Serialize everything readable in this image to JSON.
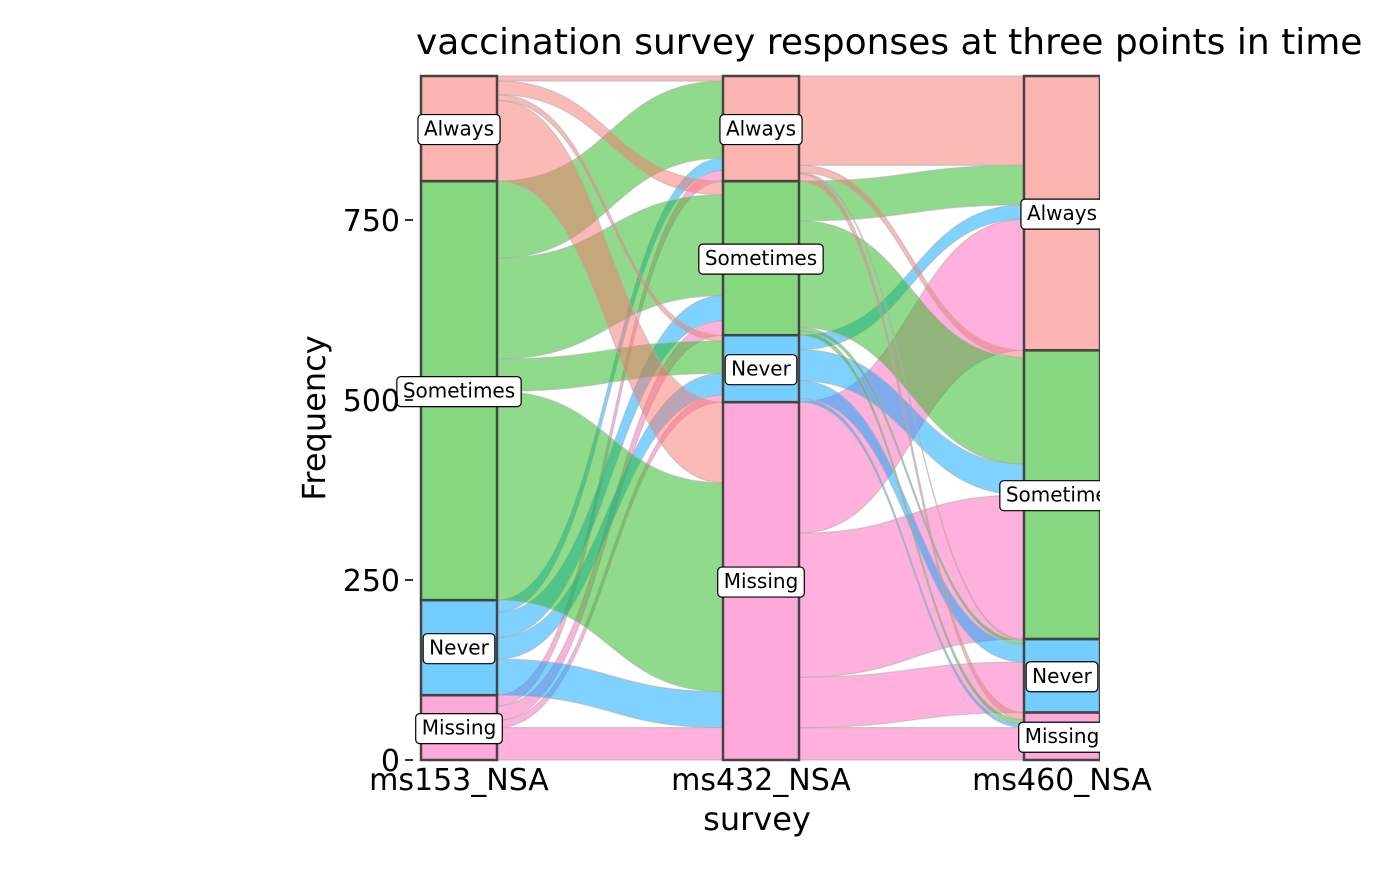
{
  "chart_data": {
    "type": "alluvial",
    "title": "vaccination survey responses at three points in time",
    "xlabel": "survey",
    "ylabel": "Frequency",
    "ylim": [
      0,
      950
    ],
    "y_ticks": [
      0,
      250,
      500,
      750
    ],
    "grid": false,
    "legend": "none",
    "axes": [
      "ms153_NSA",
      "ms432_NSA",
      "ms460_NSA"
    ],
    "categories": [
      "Missing",
      "Never",
      "Sometimes",
      "Always"
    ],
    "colors": {
      "Always": "#F8766D",
      "Sometimes": "#21B818",
      "Never": "#00A6FF",
      "Missing": "#FF62BC"
    },
    "strata": [
      {
        "axis": "ms153_NSA",
        "values": {
          "Missing": 90,
          "Never": 132,
          "Sometimes": 582,
          "Always": 146
        }
      },
      {
        "axis": "ms432_NSA",
        "values": {
          "Missing": 497,
          "Never": 93,
          "Sometimes": 214,
          "Always": 146
        }
      },
      {
        "axis": "ms460_NSA",
        "values": {
          "Missing": 66,
          "Never": 102,
          "Sometimes": 401,
          "Always": 381
        }
      }
    ],
    "flows": [
      {
        "from": "Missing",
        "to": "Missing",
        "stage": 1,
        "value": 45
      },
      {
        "from": "Missing",
        "to": "Never",
        "stage": 1,
        "value": 10
      },
      {
        "from": "Missing",
        "to": "Sometimes",
        "stage": 1,
        "value": 20
      },
      {
        "from": "Missing",
        "to": "Always",
        "stage": 1,
        "value": 15
      },
      {
        "from": "Never",
        "to": "Missing",
        "stage": 1,
        "value": 50
      },
      {
        "from": "Never",
        "to": "Never",
        "stage": 1,
        "value": 30
      },
      {
        "from": "Never",
        "to": "Sometimes",
        "stage": 1,
        "value": 35
      },
      {
        "from": "Never",
        "to": "Always",
        "stage": 1,
        "value": 17
      },
      {
        "from": "Sometimes",
        "to": "Missing",
        "stage": 1,
        "value": 290
      },
      {
        "from": "Sometimes",
        "to": "Never",
        "stage": 1,
        "value": 45
      },
      {
        "from": "Sometimes",
        "to": "Sometimes",
        "stage": 1,
        "value": 140
      },
      {
        "from": "Sometimes",
        "to": "Always",
        "stage": 1,
        "value": 107
      },
      {
        "from": "Always",
        "to": "Missing",
        "stage": 1,
        "value": 112
      },
      {
        "from": "Always",
        "to": "Never",
        "stage": 1,
        "value": 8
      },
      {
        "from": "Always",
        "to": "Sometimes",
        "stage": 1,
        "value": 19
      },
      {
        "from": "Always",
        "to": "Always",
        "stage": 1,
        "value": 7
      },
      {
        "from": "Missing",
        "to": "Missing",
        "stage": 2,
        "value": 45
      },
      {
        "from": "Missing",
        "to": "Never",
        "stage": 2,
        "value": 70
      },
      {
        "from": "Missing",
        "to": "Sometimes",
        "stage": 2,
        "value": 200
      },
      {
        "from": "Missing",
        "to": "Always",
        "stage": 2,
        "value": 182
      },
      {
        "from": "Never",
        "to": "Missing",
        "stage": 2,
        "value": 5
      },
      {
        "from": "Never",
        "to": "Never",
        "stage": 2,
        "value": 25
      },
      {
        "from": "Never",
        "to": "Sometimes",
        "stage": 2,
        "value": 43
      },
      {
        "from": "Never",
        "to": "Always",
        "stage": 2,
        "value": 20
      },
      {
        "from": "Sometimes",
        "to": "Missing",
        "stage": 2,
        "value": 6
      },
      {
        "from": "Sometimes",
        "to": "Never",
        "stage": 2,
        "value": 5
      },
      {
        "from": "Sometimes",
        "to": "Sometimes",
        "stage": 2,
        "value": 148
      },
      {
        "from": "Sometimes",
        "to": "Always",
        "stage": 2,
        "value": 55
      },
      {
        "from": "Always",
        "to": "Missing",
        "stage": 2,
        "value": 10
      },
      {
        "from": "Always",
        "to": "Never",
        "stage": 2,
        "value": 2
      },
      {
        "from": "Always",
        "to": "Sometimes",
        "stage": 2,
        "value": 10
      },
      {
        "from": "Always",
        "to": "Always",
        "stage": 2,
        "value": 124
      }
    ]
  }
}
